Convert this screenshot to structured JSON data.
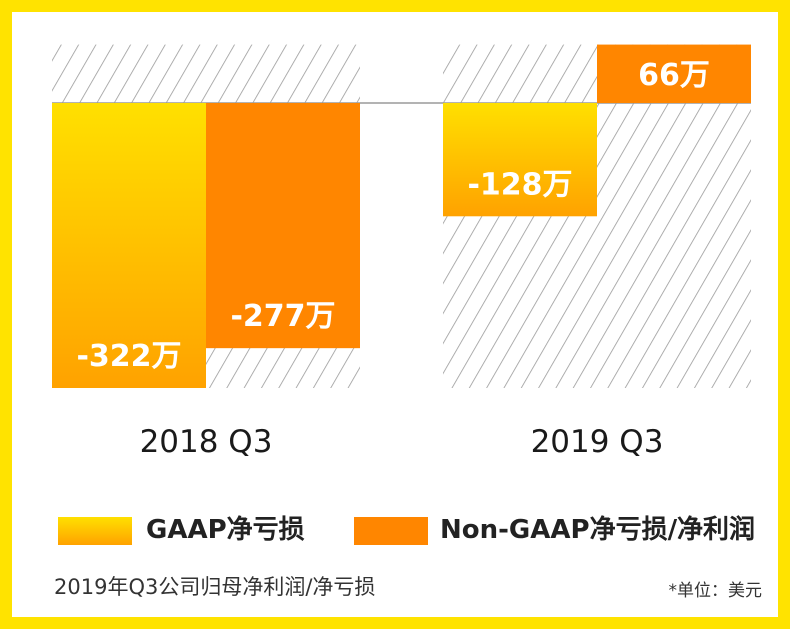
{
  "chart_data": {
    "type": "bar",
    "categories": [
      "2018 Q3",
      "2019 Q3"
    ],
    "series": [
      {
        "name": "GAAP净亏损",
        "values": [
          -322,
          -128
        ],
        "labels": [
          "-322万",
          "-128万"
        ]
      },
      {
        "name": "Non-GAAP净亏损/净利润",
        "values": [
          -277,
          66
        ],
        "labels": [
          "-277万",
          "66万"
        ]
      }
    ],
    "ylim": [
      -322,
      66
    ],
    "grid": false,
    "legend": "bottom"
  },
  "colors": {
    "frame": "#FFE300",
    "gaap_top": "#FFE000",
    "gaap_bottom": "#FFA200",
    "nongaap": "#FF8600",
    "hatch": "#9a9a9a",
    "baseline": "#9a9a9a"
  },
  "footer": {
    "caption": "2019年Q3公司归母净利润/净亏损",
    "unit": "*单位：美元"
  }
}
